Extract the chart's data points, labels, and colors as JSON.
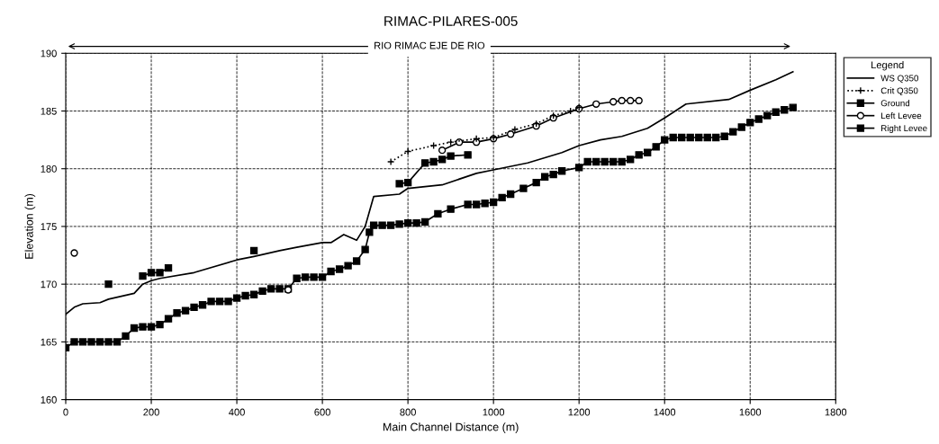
{
  "chart_data": {
    "type": "line",
    "title": "RIMAC-PILARES-005",
    "xlabel": "Main Channel Distance (m)",
    "ylabel": "Elevation (m)",
    "legend_title": "Legend",
    "legend": "right",
    "grid": true,
    "xlim": [
      0,
      1800
    ],
    "xticks": [
      0,
      200,
      400,
      600,
      800,
      1000,
      1200,
      1400,
      1600,
      1800
    ],
    "ylim": [
      160,
      190
    ],
    "yticks": [
      160,
      165,
      170,
      175,
      180,
      185,
      190
    ],
    "annotations": [
      "RIO RIMAC EJE DE RIO"
    ],
    "series": [
      {
        "name": "WS Q350",
        "color": "#000000",
        "line_style": "solid",
        "marker": "none",
        "x": [
          0,
          20,
          40,
          80,
          100,
          160,
          180,
          200,
          220,
          300,
          400,
          440,
          500,
          540,
          600,
          620,
          650,
          680,
          700,
          720,
          780,
          800,
          880,
          960,
          1000,
          1080,
          1160,
          1200,
          1250,
          1300,
          1360,
          1400,
          1450,
          1550,
          1600,
          1660,
          1700
        ],
        "values": [
          167.4,
          168,
          168.3,
          168.4,
          168.7,
          169.2,
          170,
          170.3,
          170.5,
          171,
          172.1,
          172.4,
          172.9,
          173.2,
          173.6,
          173.6,
          174.3,
          173.8,
          175,
          177.6,
          177.8,
          178.3,
          178.6,
          179.6,
          179.9,
          180.5,
          181.4,
          182,
          182.5,
          182.8,
          183.5,
          184.4,
          185.6,
          186,
          186.8,
          187.7,
          188.4
        ]
      },
      {
        "name": "Crit Q350",
        "color": "#000000",
        "line_style": "dotted",
        "marker": "cross",
        "x": [
          760,
          800,
          860,
          900,
          960,
          1000,
          1050,
          1100,
          1140,
          1180,
          1200
        ],
        "values": [
          180.6,
          181.5,
          182,
          182.3,
          182.6,
          182.7,
          183.4,
          183.9,
          184.6,
          185,
          185.3
        ]
      },
      {
        "name": "Ground",
        "color": "#000000",
        "line_style": "solid",
        "marker": "square",
        "x": [
          0,
          20,
          40,
          60,
          80,
          100,
          120,
          140,
          160,
          180,
          200,
          220,
          240,
          260,
          280,
          300,
          320,
          340,
          360,
          380,
          400,
          420,
          440,
          460,
          480,
          500,
          520,
          540,
          560,
          580,
          600,
          620,
          640,
          660,
          680,
          700,
          710,
          720,
          740,
          760,
          780,
          800,
          820,
          840,
          870,
          900,
          940,
          960,
          980,
          1000,
          1020,
          1040,
          1070,
          1100,
          1120,
          1140,
          1160,
          1200,
          1220,
          1240,
          1260,
          1280,
          1300,
          1320,
          1340,
          1360,
          1380,
          1400,
          1420,
          1440,
          1460,
          1480,
          1500,
          1520,
          1540,
          1560,
          1580,
          1600,
          1620,
          1640,
          1660,
          1680,
          1700
        ],
        "values": [
          164.5,
          165,
          165,
          165,
          165,
          165,
          165,
          165.5,
          166.2,
          166.3,
          166.3,
          166.5,
          167,
          167.5,
          167.7,
          168,
          168.2,
          168.5,
          168.5,
          168.5,
          168.8,
          169,
          169.1,
          169.4,
          169.6,
          169.6,
          169.6,
          170.5,
          170.6,
          170.6,
          170.6,
          171.1,
          171.3,
          171.6,
          172,
          173,
          174.5,
          175.1,
          175.1,
          175.1,
          175.2,
          175.3,
          175.3,
          175.4,
          176.1,
          176.5,
          176.9,
          176.9,
          177,
          177.1,
          177.5,
          177.8,
          178.3,
          178.8,
          179.3,
          179.5,
          179.8,
          180.1,
          180.6,
          180.6,
          180.6,
          180.6,
          180.6,
          180.8,
          181.2,
          181.4,
          181.9,
          182.5,
          182.7,
          182.7,
          182.7,
          182.7,
          182.7,
          182.7,
          182.8,
          183.2,
          183.6,
          184,
          184.3,
          184.6,
          184.9,
          185.1,
          185.3
        ]
      },
      {
        "name": "Left Levee",
        "color": "#000000",
        "line_style": "solid",
        "marker": "circle",
        "x": [
          20,
          300,
          520,
          700,
          880,
          920,
          960,
          1000,
          1040,
          1100,
          1140,
          1200,
          1240,
          1280,
          1300,
          1320,
          1340
        ],
        "values": [
          172.7,
          null,
          169.5,
          null,
          181.6,
          182.3,
          182.3,
          182.6,
          183,
          183.7,
          184.4,
          185.2,
          185.6,
          185.8,
          185.9,
          185.9,
          185.9
        ]
      },
      {
        "name": "Right Levee",
        "color": "#000000",
        "line_style": "solid",
        "marker": "square",
        "x": [
          100,
          150,
          180,
          200,
          220,
          240,
          300,
          440,
          600,
          780,
          800,
          840,
          860,
          880,
          900,
          940
        ],
        "values": [
          170,
          null,
          170.7,
          171,
          171,
          171.4,
          null,
          172.9,
          null,
          178.7,
          178.8,
          180.5,
          180.6,
          180.8,
          181.1,
          181.2
        ]
      }
    ]
  }
}
